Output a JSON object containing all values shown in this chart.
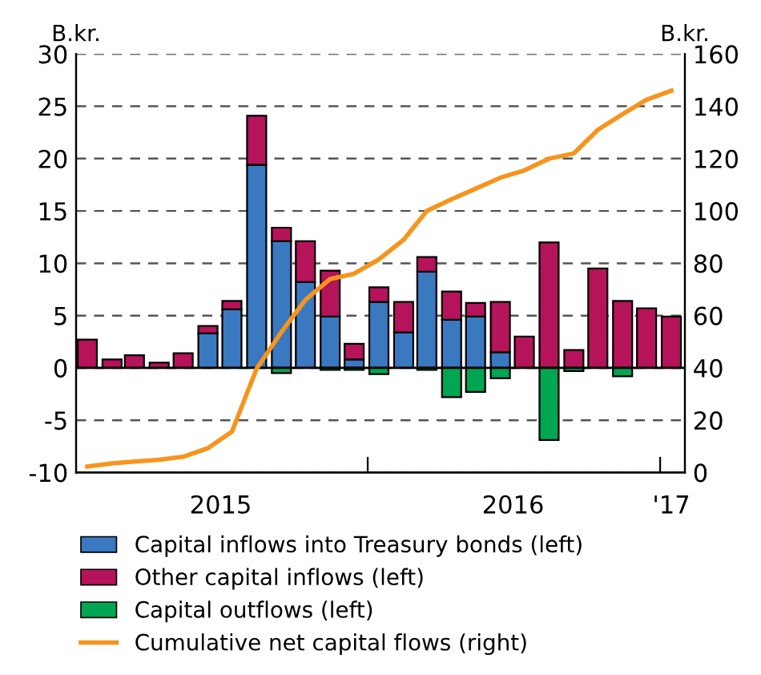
{
  "chart_data": {
    "type": "bar",
    "stacked": true,
    "ylabel": "B.kr.",
    "y2label": "B.kr.",
    "x": [
      "2015-01-15",
      "2015-02-15",
      "2015-03-15",
      "2015-04-15",
      "2015-05-15",
      "2015-06-15",
      "2015-07-15",
      "2015-08-15",
      "2015-09-15",
      "2015-10-15",
      "2015-11-15",
      "2015-12-15",
      "2016-01-15",
      "2016-02-15",
      "2016-03-15",
      "2016-04-15",
      "2016-05-15",
      "2016-06-15",
      "2016-07-15",
      "2016-08-15",
      "2016-09-15",
      "2016-10-15",
      "2016-11-15",
      "2016-12-15",
      "2017-01-15"
    ],
    "series": [
      {
        "name": "Capital inflows into Treasury bonds (left)",
        "color": "#3a78c0",
        "values": [
          null,
          null,
          null,
          null,
          null,
          3.3,
          5.6,
          19.4,
          12.1,
          8.2,
          4.9,
          0.8,
          6.3,
          3.4,
          9.2,
          4.6,
          4.9,
          1.5,
          null,
          null,
          null,
          null,
          null,
          null,
          null
        ]
      },
      {
        "name": "Other capital inflows (left)",
        "color": "#b5135a",
        "values": [
          2.7,
          0.8,
          1.2,
          0.5,
          1.4,
          0.7,
          0.8,
          4.7,
          1.3,
          3.9,
          4.4,
          1.5,
          1.4,
          2.9,
          1.4,
          2.7,
          1.3,
          4.8,
          3.0,
          12.0,
          1.7,
          9.5,
          6.4,
          5.7,
          4.9
        ]
      },
      {
        "name": "Capital outflows (left)",
        "color": "#00a651",
        "values": [
          null,
          null,
          null,
          null,
          null,
          null,
          null,
          null,
          -0.5,
          null,
          -0.2,
          -0.2,
          -0.6,
          null,
          -0.2,
          -2.8,
          -2.3,
          -1.0,
          null,
          -6.9,
          -0.3,
          null,
          -0.8,
          null,
          null
        ]
      },
      {
        "name": "Cumulative net capital flows (right)",
        "type": "line",
        "axis": "y2",
        "color": "#f7941d",
        "values": [
          2.3,
          3.5,
          4.2,
          4.9,
          6.0,
          9.3,
          15.6,
          39.7,
          53.7,
          66,
          74,
          76,
          81.5,
          89,
          100,
          104.5,
          108.5,
          112.7,
          115.5,
          120,
          122,
          131,
          137,
          142.5,
          146
        ]
      }
    ],
    "xlim": [
      "2015-01-01",
      "2017-02-01"
    ],
    "xticks": [
      {
        "value": "2015-07-01",
        "label": "2015"
      },
      {
        "value": "2016-01-01",
        "label": null
      },
      {
        "value": "2016-07-01",
        "label": "2016"
      },
      {
        "value": "2017-01-01",
        "label": null
      },
      {
        "value": "2017-01-15",
        "label": "'17"
      }
    ],
    "ylim": [
      -10,
      30
    ],
    "yticks": [
      -10,
      -5,
      0,
      5,
      10,
      15,
      20,
      25,
      30
    ],
    "y2lim": [
      0,
      160
    ],
    "y2ticks": [
      0,
      20,
      40,
      60,
      80,
      100,
      120,
      140,
      160
    ],
    "grid": "y",
    "legend": "bottom"
  }
}
